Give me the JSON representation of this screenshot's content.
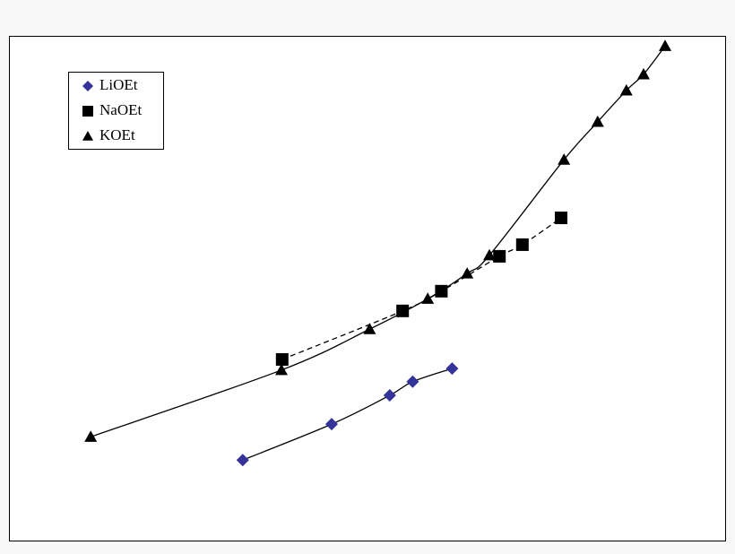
{
  "chart_data": {
    "type": "scatter",
    "xlim": [
      0,
      100
    ],
    "ylim": [
      0,
      100
    ],
    "legend": "upper left",
    "series": [
      {
        "name": "LiOEt",
        "color": "#333399",
        "marker": "diamond",
        "line_style": "solid",
        "x": [
          32.6,
          45.0,
          53.1,
          56.3,
          61.8
        ],
        "values": [
          16.1,
          23.2,
          28.9,
          31.6,
          34.2
        ]
      },
      {
        "name": "NaOEt",
        "color": "#000000",
        "marker": "square",
        "line_style": "dashed",
        "x": [
          38.1,
          54.9,
          60.3,
          68.4,
          71.6,
          77.0
        ],
        "values": [
          36.0,
          45.6,
          49.5,
          56.4,
          58.7,
          64.0
        ]
      },
      {
        "name": "KOEt",
        "color": "#000000",
        "marker": "triangle",
        "line_style": "solid",
        "x": [
          11.4,
          38.0,
          50.3,
          58.4,
          63.9,
          67.0,
          77.4,
          82.1,
          86.1,
          88.5,
          91.5
        ],
        "values": [
          20.7,
          33.9,
          42.0,
          48.0,
          53.0,
          56.6,
          75.5,
          83.0,
          89.2,
          92.4,
          98.0
        ]
      }
    ]
  }
}
